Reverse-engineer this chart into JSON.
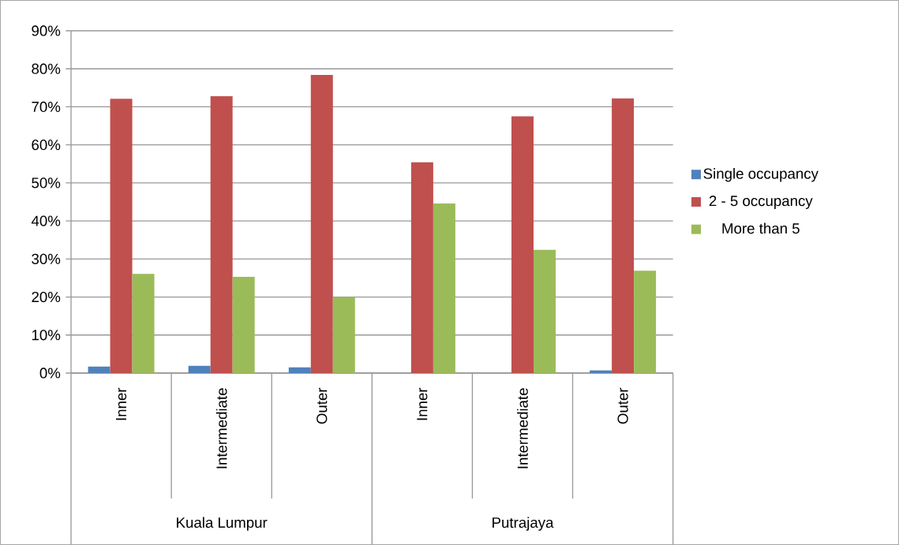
{
  "chart_data": {
    "type": "bar",
    "categories": [
      "Inner",
      "Intermediate",
      "Outer",
      "Inner",
      "Intermediate",
      "Outer"
    ],
    "series": [
      {
        "name": "Single occupancy",
        "color": "#4f81bd",
        "values": [
          1.7,
          1.9,
          1.5,
          0,
          0,
          0.7
        ]
      },
      {
        "name": "2 - 5 occupancy",
        "color": "#c0504d",
        "values": [
          72.1,
          72.8,
          78.4,
          55.4,
          67.5,
          72.2
        ]
      },
      {
        "name": "More than 5",
        "color": "#9bbb59",
        "values": [
          26.1,
          25.3,
          20.0,
          44.6,
          32.4,
          26.9
        ]
      }
    ],
    "ylim": [
      0,
      90
    ],
    "yticks": [
      {
        "value": 0,
        "label": "0%"
      },
      {
        "value": 10,
        "label": "10%"
      },
      {
        "value": 20,
        "label": "20%"
      },
      {
        "value": 30,
        "label": "30%"
      },
      {
        "value": 40,
        "label": "40%"
      },
      {
        "value": 50,
        "label": "50%"
      },
      {
        "value": 60,
        "label": "60%"
      },
      {
        "value": 70,
        "label": "70%"
      },
      {
        "value": 80,
        "label": "80%"
      },
      {
        "value": 90,
        "label": "90%"
      }
    ],
    "grid": "y",
    "legend": "right",
    "annotations": [
      "Kuala Lumpur",
      "Putrajaya"
    ]
  }
}
